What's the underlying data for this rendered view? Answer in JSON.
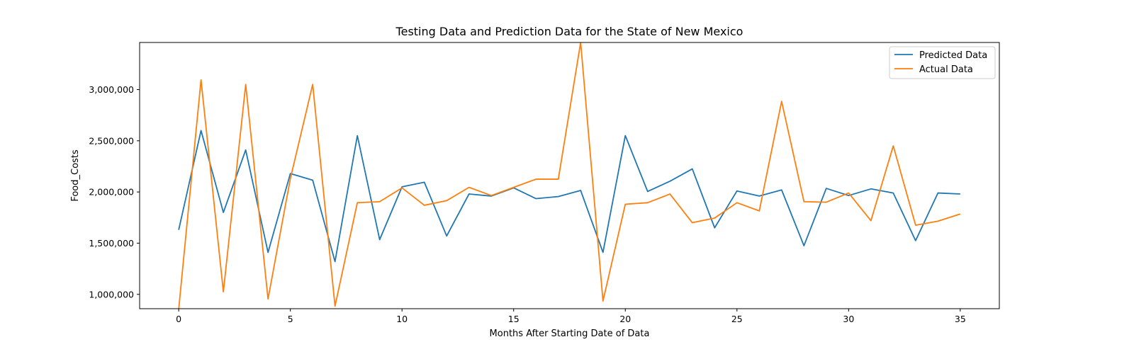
{
  "chart_data": {
    "type": "line",
    "title": "Testing Data and Prediction Data for the State of New Mexico",
    "xlabel": "Months After Starting Date of Data",
    "ylabel": "Food_Costs",
    "xlim": [
      -1.75,
      36.75
    ],
    "ylim": [
      860000,
      3460000
    ],
    "x_ticks": [
      0,
      5,
      10,
      15,
      20,
      25,
      30,
      35
    ],
    "x_tick_labels": [
      "0",
      "5",
      "10",
      "15",
      "20",
      "25",
      "30",
      "35"
    ],
    "y_ticks": [
      1000000,
      1500000,
      2000000,
      2500000,
      3000000
    ],
    "y_tick_labels": [
      "1,000,000",
      "1,500,000",
      "2,000,000",
      "2,500,000",
      "3,000,000"
    ],
    "grid": false,
    "legend_position": "top-right",
    "x": [
      0,
      1,
      2,
      3,
      4,
      5,
      6,
      7,
      8,
      9,
      10,
      11,
      12,
      13,
      14,
      15,
      16,
      17,
      18,
      19,
      20,
      21,
      22,
      23,
      24,
      25,
      26,
      27,
      28,
      29,
      30,
      31,
      32,
      33,
      34,
      35
    ],
    "series": [
      {
        "name": "Predicted Data",
        "color": "#1f77b4",
        "values": [
          1630000,
          2600000,
          1800000,
          2410000,
          1410000,
          2180000,
          2115000,
          1320000,
          2550000,
          1535000,
          2050000,
          2095000,
          1570000,
          1980000,
          1960000,
          2040000,
          1935000,
          1955000,
          2015000,
          1410000,
          2550000,
          2005000,
          2105000,
          2225000,
          1650000,
          2010000,
          1960000,
          2020000,
          1475000,
          2035000,
          1965000,
          2030000,
          1990000,
          1525000,
          1990000,
          1980000
        ]
      },
      {
        "name": "Actual Data",
        "color": "#ff7f0e",
        "values": [
          855000,
          3095000,
          1025000,
          3050000,
          955000,
          2130000,
          3050000,
          885000,
          1895000,
          1905000,
          2040000,
          1870000,
          1915000,
          2045000,
          1965000,
          2045000,
          2125000,
          2125000,
          3460000,
          935000,
          1880000,
          1895000,
          1980000,
          1700000,
          1745000,
          1895000,
          1815000,
          2885000,
          1905000,
          1900000,
          1990000,
          1720000,
          2450000,
          1675000,
          1715000,
          1785000
        ]
      }
    ]
  }
}
